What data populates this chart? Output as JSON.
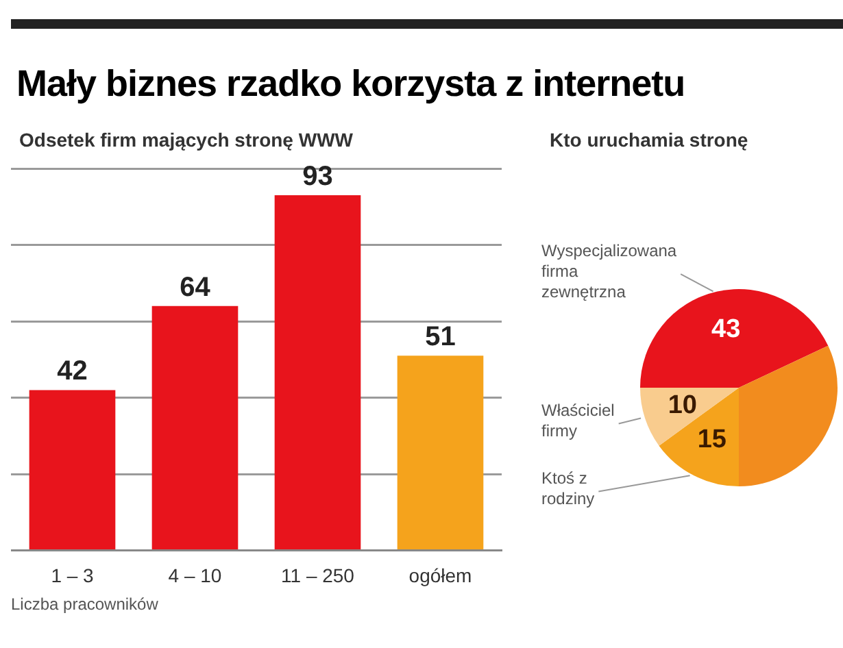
{
  "chart_data": [
    {
      "type": "bar",
      "title": "Mały biznes rzadko korzysta z internetu",
      "subtitle": "Odsetek firm mających stronę WWW",
      "xlabel": "Liczba pracowników",
      "categories": [
        "1 – 3",
        "4 – 10",
        "11 – 250",
        "ogółem"
      ],
      "values": [
        42,
        64,
        93,
        51
      ],
      "colors": [
        "#e8141c",
        "#e8141c",
        "#e8141c",
        "#f5a31c"
      ],
      "ylim": [
        0,
        100
      ],
      "yticks": [
        {
          "value": 0,
          "label": null
        },
        {
          "value": 20,
          "label": null
        },
        {
          "value": 40,
          "label": null
        },
        {
          "value": 60,
          "label": null
        },
        {
          "value": 80,
          "label": null
        },
        {
          "value": 100,
          "label": null
        }
      ],
      "grid": "y",
      "tick_labels": "x",
      "data_labels": true,
      "legend": false
    },
    {
      "type": "pie",
      "title": "Kto uruchamia stronę",
      "categories": [
        "Wyspecjalizowana firma zewnętrzna",
        null,
        "Ktoś z rodziny",
        "Właściciel firmy"
      ],
      "values": [
        43,
        32,
        15,
        10
      ],
      "value_labels": [
        "43",
        null,
        "15",
        "10"
      ],
      "colors": [
        "#e8141c",
        "#f28c1e",
        "#f5a31c",
        "#f9cc8e"
      ],
      "legend": false
    }
  ]
}
